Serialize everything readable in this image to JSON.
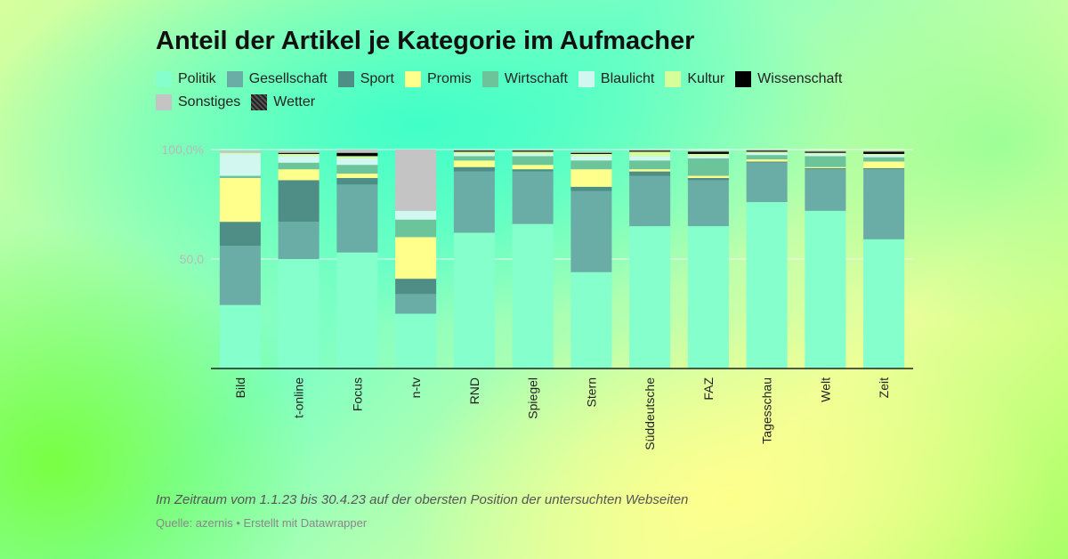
{
  "chart_data": {
    "type": "bar",
    "stacked": true,
    "title": "Anteil der Artikel je Kategorie im Aufmacher",
    "categories": [
      "Bild",
      "t-online",
      "Focus",
      "n-tv",
      "RND",
      "Spiegel",
      "Stern",
      "Süddeutsche",
      "FAZ",
      "Tagesschau",
      "Welt",
      "Zeit"
    ],
    "series": [
      {
        "name": "Politik",
        "color": "#85ffcc",
        "values": [
          29,
          50,
          53,
          25,
          62,
          66,
          44,
          65,
          65,
          76,
          72,
          59
        ]
      },
      {
        "name": "Gesellschaft",
        "color": "#6aada7",
        "values": [
          27,
          17,
          31,
          9,
          28,
          24,
          37,
          23,
          21,
          18,
          19,
          32
        ]
      },
      {
        "name": "Sport",
        "color": "#4f8e86",
        "values": [
          11,
          19,
          3,
          7,
          2,
          1,
          2,
          2,
          1,
          0.5,
          0.5,
          0.5
        ]
      },
      {
        "name": "Promis",
        "color": "#ffff8c",
        "values": [
          20,
          5,
          2,
          19,
          3,
          2,
          8,
          1,
          1,
          1,
          0.5,
          3
        ]
      },
      {
        "name": "Wirtschaft",
        "color": "#6cc49b",
        "values": [
          1,
          3,
          4,
          8,
          2,
          4,
          4,
          4,
          8,
          2,
          5,
          2
        ]
      },
      {
        "name": "Blaulicht",
        "color": "#d1f7f0",
        "values": [
          10,
          3,
          3,
          4,
          1,
          1,
          2,
          2,
          1,
          1,
          1,
          1
        ]
      },
      {
        "name": "Kultur",
        "color": "#d6ff9c",
        "values": [
          0.5,
          1,
          1,
          0,
          1,
          1,
          1,
          2,
          1,
          0.5,
          0.5,
          0.5
        ]
      },
      {
        "name": "Wissenschaft",
        "color": "#000000",
        "values": [
          0,
          0.5,
          1.5,
          0,
          0.5,
          0.5,
          0.5,
          0.5,
          1,
          0.5,
          0.5,
          1
        ]
      },
      {
        "name": "Sonstiges",
        "color": "#c4c4c4",
        "values": [
          1,
          1,
          1.5,
          28,
          0.5,
          0.5,
          0.5,
          0.5,
          0.5,
          0.5,
          0.5,
          0.5
        ]
      },
      {
        "name": "Wetter",
        "color": "#333333",
        "pattern": "hatch",
        "values": [
          0,
          0,
          0,
          0,
          0,
          0,
          0,
          0,
          0,
          0,
          0,
          0
        ]
      }
    ],
    "yticks": [
      {
        "value": 100,
        "label": "100,0%"
      },
      {
        "value": 50,
        "label": "50,0"
      }
    ],
    "ylim": [
      0,
      100
    ],
    "grid": true,
    "legend": "top"
  },
  "notes": "Im Zeitraum vom 1.1.23 bis 30.4.23 auf der obersten Position der untersuchten Webseiten",
  "source": "Quelle: azernis • Erstellt mit Datawrapper"
}
